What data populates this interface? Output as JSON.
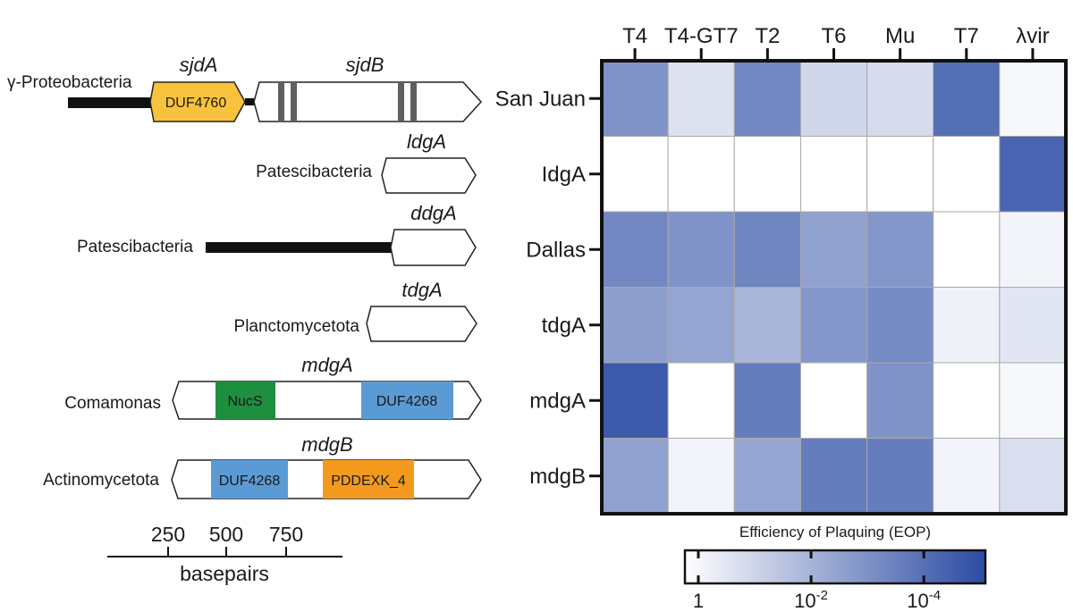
{
  "figure": {
    "panel_genes": [
      {
        "id": "sjd",
        "organism": "γ-Proteobacteria",
        "genes": [
          {
            "name": "sjdA",
            "domain": "DUF4760"
          },
          {
            "name": "sjdB"
          }
        ]
      },
      {
        "id": "idg",
        "organism": "Patescibacteria",
        "genes": [
          {
            "name": "ldgA"
          }
        ]
      },
      {
        "id": "ddg",
        "organism": "Patescibacteria",
        "genes": [
          {
            "name": "ddgA"
          }
        ]
      },
      {
        "id": "tdg",
        "organism": "Planctomycetota",
        "genes": [
          {
            "name": "tdgA"
          }
        ]
      },
      {
        "id": "mdgA",
        "organism": "Comamonas",
        "genes": [
          {
            "name": "mdgA",
            "domains": [
              "NucS",
              "DUF4268"
            ]
          }
        ]
      },
      {
        "id": "mdgB",
        "organism": "Actinomycetota",
        "genes": [
          {
            "name": "mdgB",
            "domains": [
              "DUF4268",
              "PDDEXK_4"
            ]
          }
        ]
      }
    ],
    "scale_bar": {
      "ticks": [
        "250",
        "500",
        "750"
      ],
      "label": "basepairs"
    },
    "colors": {
      "duf4760": "#F9C23C",
      "nucs": "#1E8F3E",
      "duf4268": "#5B9BD5",
      "pddexk4": "#F39A1E",
      "heat_low": "#FFFFFF",
      "heat_high": "#2B4BA3"
    }
  },
  "chart_data": {
    "type": "heatmap",
    "columns": [
      "T4",
      "T4-GT7",
      "T2",
      "T6",
      "Mu",
      "T7",
      "λvir"
    ],
    "rows": [
      "San Juan",
      "IdgA",
      "Dallas",
      "tdgA",
      "mdgA",
      "mdgB"
    ],
    "log10_eop_reduction": [
      [
        3.0,
        0.8,
        3.3,
        1.1,
        1.0,
        4.0,
        0.2
      ],
      [
        0.0,
        0.0,
        0.0,
        0.0,
        0.0,
        0.0,
        4.3
      ],
      [
        3.3,
        3.0,
        3.4,
        2.6,
        2.9,
        0.0,
        0.3
      ],
      [
        2.7,
        2.5,
        2.0,
        2.9,
        3.2,
        0.4,
        0.7
      ],
      [
        4.6,
        0.0,
        3.6,
        0.0,
        3.0,
        0.0,
        0.2
      ],
      [
        2.6,
        0.3,
        2.5,
        3.6,
        3.6,
        0.3,
        0.9
      ]
    ],
    "colorbar": {
      "title": "Efficiency of Plaquing (EOP)",
      "tick_labels": [
        {
          "base": "1",
          "exp": ""
        },
        {
          "base": "10",
          "exp": "-2"
        },
        {
          "base": "10",
          "exp": "-4"
        }
      ],
      "range_log10": [
        0,
        5
      ]
    }
  }
}
